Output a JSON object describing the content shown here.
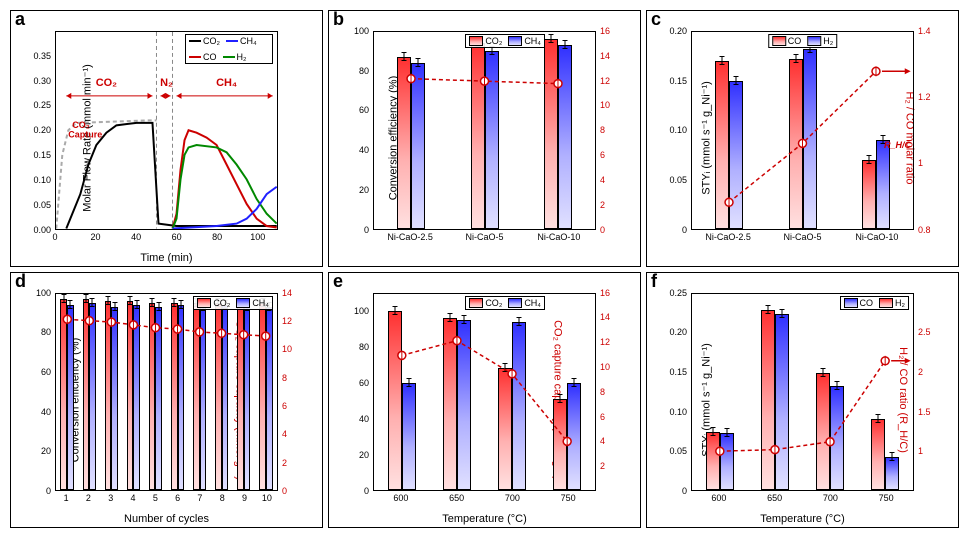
{
  "panels": {
    "a": {
      "label": "a",
      "xlabel": "Time (min)",
      "ylabel": "Molar Flow Rate (mmol min⁻¹)",
      "xlim": [
        0,
        110
      ],
      "ylim": [
        0,
        0.4
      ],
      "xticks": [
        0,
        20,
        40,
        60,
        80,
        100
      ],
      "yticks": [
        0.0,
        0.05,
        0.1,
        0.15,
        0.2,
        0.25,
        0.3,
        0.35
      ],
      "regions": {
        "co2": {
          "label": "CO₂",
          "x": 25,
          "color": "#cc0000"
        },
        "n2": {
          "label": "N₂",
          "x": 55,
          "color": "#cc0000"
        },
        "ch4": {
          "label": "CH₄",
          "x": 85,
          "color": "#cc0000"
        }
      },
      "capture_label": "CO₂ Capture",
      "legend": [
        {
          "label": "CO₂",
          "color": "#000000"
        },
        {
          "label": "CH₄",
          "color": "#2020ff"
        },
        {
          "label": "CO",
          "color": "#cc0000"
        },
        {
          "label": "H₂",
          "color": "#008800"
        }
      ],
      "series": {
        "co2_dashed": {
          "color": "#aaaaaa",
          "dash": true,
          "pts": [
            [
              0,
              0
            ],
            [
              3,
              0.15
            ],
            [
              6,
              0.2
            ],
            [
              10,
              0.215
            ],
            [
              45,
              0.22
            ],
            [
              50,
              0.22
            ]
          ]
        },
        "co2": {
          "color": "#000000",
          "pts": [
            [
              5,
              0
            ],
            [
              8,
              0.03
            ],
            [
              12,
              0.07
            ],
            [
              16,
              0.13
            ],
            [
              20,
              0.17
            ],
            [
              25,
              0.195
            ],
            [
              30,
              0.21
            ],
            [
              40,
              0.215
            ],
            [
              48,
              0.215
            ],
            [
              51,
              0.01
            ],
            [
              60,
              0.005
            ],
            [
              110,
              0.005
            ]
          ]
        },
        "co": {
          "color": "#cc0000",
          "pts": [
            [
              58,
              0
            ],
            [
              60,
              0.03
            ],
            [
              62,
              0.12
            ],
            [
              64,
              0.18
            ],
            [
              66,
              0.2
            ],
            [
              70,
              0.195
            ],
            [
              75,
              0.185
            ],
            [
              80,
              0.17
            ],
            [
              85,
              0.13
            ],
            [
              90,
              0.09
            ],
            [
              95,
              0.05
            ],
            [
              100,
              0.02
            ],
            [
              105,
              0.005
            ],
            [
              110,
              0.002
            ]
          ]
        },
        "h2": {
          "color": "#008800",
          "pts": [
            [
              58,
              0
            ],
            [
              60,
              0.02
            ],
            [
              62,
              0.1
            ],
            [
              64,
              0.15
            ],
            [
              66,
              0.165
            ],
            [
              70,
              0.17
            ],
            [
              80,
              0.165
            ],
            [
              85,
              0.155
            ],
            [
              90,
              0.13
            ],
            [
              95,
              0.1
            ],
            [
              100,
              0.06
            ],
            [
              105,
              0.03
            ],
            [
              110,
              0.01
            ]
          ]
        },
        "ch4": {
          "color": "#2020ff",
          "pts": [
            [
              58,
              0
            ],
            [
              80,
              0.005
            ],
            [
              90,
              0.01
            ],
            [
              95,
              0.02
            ],
            [
              100,
              0.04
            ],
            [
              105,
              0.07
            ],
            [
              110,
              0.085
            ]
          ]
        }
      },
      "vlines": [
        50,
        58
      ]
    },
    "b": {
      "label": "b",
      "xlabel": "",
      "ylabel_left": "Conversion efficiency (%)",
      "ylabel_right": "CO₂ capture capacity (mmol g⁻¹)",
      "ylim_left": [
        0,
        100
      ],
      "ylim_right": [
        0,
        16
      ],
      "yticks_left": [
        0,
        20,
        40,
        60,
        80,
        100
      ],
      "yticks_right": [
        0,
        2,
        4,
        6,
        8,
        10,
        12,
        14,
        16
      ],
      "categories": [
        "Ni-CaO-2.5",
        "Ni-CaO-5",
        "Ni-CaO-10"
      ],
      "legend": [
        {
          "label": "CO₂",
          "type": "red"
        },
        {
          "label": "CH₄",
          "type": "blue"
        }
      ],
      "bars": [
        {
          "red": 87,
          "blue": 84
        },
        {
          "red": 94,
          "blue": 90
        },
        {
          "red": 96,
          "blue": 93
        }
      ],
      "line_right": {
        "color": "#cc0000",
        "dash": true,
        "pts": [
          [
            0,
            12.2
          ],
          [
            1,
            12.0
          ],
          [
            2,
            11.8
          ]
        ]
      }
    },
    "c": {
      "label": "c",
      "xlabel": "",
      "ylabel_left": "STYᵢ (mmol s⁻¹ g_Ni⁻¹)",
      "ylabel_right": "H₂ / CO molar ratio",
      "right_annotation": "R_H/C",
      "ylim_left": [
        0.0,
        0.2
      ],
      "ylim_right": [
        0.8,
        1.4
      ],
      "yticks_left": [
        0.0,
        0.05,
        0.1,
        0.15,
        0.2
      ],
      "yticks_right": [
        0.8,
        1.0,
        1.2,
        1.4
      ],
      "categories": [
        "Ni-CaO-2.5",
        "Ni-CaO-5",
        "Ni-CaO-10"
      ],
      "legend": [
        {
          "label": "CO",
          "type": "red"
        },
        {
          "label": "H₂",
          "type": "blue"
        }
      ],
      "bars": [
        {
          "red": 0.17,
          "blue": 0.15
        },
        {
          "red": 0.172,
          "blue": 0.182
        },
        {
          "red": 0.07,
          "blue": 0.09
        }
      ],
      "line_right": {
        "color": "#cc0000",
        "dash": true,
        "pts": [
          [
            0,
            0.88
          ],
          [
            1,
            1.06
          ],
          [
            2,
            1.28
          ]
        ]
      }
    },
    "d": {
      "label": "d",
      "xlabel": "Number of cycles",
      "ylabel_left": "Conversion efficiency (%)",
      "ylabel_right": "CO₂ capture capacity (mmol g⁻¹)",
      "ylim_left": [
        0,
        100
      ],
      "ylim_right": [
        0,
        14
      ],
      "yticks_left": [
        0,
        20,
        40,
        60,
        80,
        100
      ],
      "yticks_right": [
        0,
        2,
        4,
        6,
        8,
        10,
        12,
        14
      ],
      "categories": [
        "1",
        "2",
        "3",
        "4",
        "5",
        "6",
        "7",
        "8",
        "9",
        "10"
      ],
      "legend": [
        {
          "label": "CO₂",
          "type": "red"
        },
        {
          "label": "CH₄",
          "type": "blue"
        }
      ],
      "bars": [
        {
          "red": 97,
          "blue": 94
        },
        {
          "red": 97,
          "blue": 95
        },
        {
          "red": 96,
          "blue": 93
        },
        {
          "red": 96,
          "blue": 94
        },
        {
          "red": 95,
          "blue": 93
        },
        {
          "red": 95,
          "blue": 94
        },
        {
          "red": 95,
          "blue": 93
        },
        {
          "red": 95,
          "blue": 94
        },
        {
          "red": 95,
          "blue": 93
        },
        {
          "red": 95,
          "blue": 93
        }
      ],
      "line_right": {
        "color": "#cc0000",
        "dash": true,
        "pts": [
          [
            0,
            12.2
          ],
          [
            1,
            12.1
          ],
          [
            2,
            12.0
          ],
          [
            3,
            11.8
          ],
          [
            4,
            11.6
          ],
          [
            5,
            11.5
          ],
          [
            6,
            11.3
          ],
          [
            7,
            11.2
          ],
          [
            8,
            11.1
          ],
          [
            9,
            11.0
          ]
        ]
      }
    },
    "e": {
      "label": "e",
      "xlabel": "Temperature (°C)",
      "ylabel_left": "Conversion efficiency (%)",
      "ylabel_right": "CO₂ capture capacity (mmol g⁻¹)",
      "ylim_left": [
        0,
        110
      ],
      "ylim_right": [
        0,
        16
      ],
      "yticks_left": [
        0,
        20,
        40,
        60,
        80,
        100
      ],
      "yticks_right": [
        2,
        4,
        6,
        8,
        10,
        12,
        14,
        16
      ],
      "categories": [
        "600",
        "650",
        "700",
        "750"
      ],
      "legend": [
        {
          "label": "CO₂",
          "type": "red"
        },
        {
          "label": "CH₄",
          "type": "blue"
        }
      ],
      "bars": [
        {
          "red": 100,
          "blue": 60
        },
        {
          "red": 96,
          "blue": 95
        },
        {
          "red": 68,
          "blue": 94
        },
        {
          "red": 51,
          "blue": 60
        }
      ],
      "line_right": {
        "color": "#cc0000",
        "dash": true,
        "pts": [
          [
            0,
            11.0
          ],
          [
            1,
            12.2
          ],
          [
            2,
            9.5
          ],
          [
            3,
            4.0
          ]
        ]
      }
    },
    "f": {
      "label": "f",
      "xlabel": "Temperature (°C)",
      "ylabel_left": "STYᵢ (mmol s⁻¹ g_Ni⁻¹)",
      "ylabel_right": "H₂ / CO ratio (R_H/C)",
      "ylim_left": [
        0.0,
        0.25
      ],
      "ylim_right": [
        0.5,
        3.0
      ],
      "yticks_left": [
        0.0,
        0.05,
        0.1,
        0.15,
        0.2,
        0.25
      ],
      "yticks_right": [
        1.0,
        1.5,
        2.0,
        2.5
      ],
      "categories": [
        "600",
        "650",
        "700",
        "750"
      ],
      "legend": [
        {
          "label": "CO",
          "type": "blue"
        },
        {
          "label": "H₂",
          "type": "red"
        }
      ],
      "bars": [
        {
          "red": 0.073,
          "blue": 0.072
        },
        {
          "red": 0.228,
          "blue": 0.224
        },
        {
          "red": 0.148,
          "blue": 0.132
        },
        {
          "red": 0.09,
          "blue": 0.042
        }
      ],
      "line_right": {
        "color": "#cc0000",
        "dash": true,
        "pts": [
          [
            0,
            1.0
          ],
          [
            1,
            1.02
          ],
          [
            2,
            1.12
          ],
          [
            3,
            2.15
          ]
        ]
      }
    }
  },
  "colors": {
    "red_grad_top": "#ff3030",
    "blue_grad_top": "#3030ff",
    "red_line": "#cc0000"
  }
}
